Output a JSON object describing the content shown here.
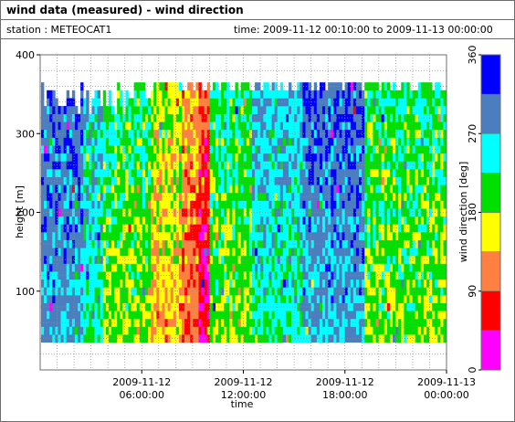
{
  "header": {
    "title": "wind data (measured) - wind direction",
    "station": "station : METEOCAT1",
    "time_range": "time: 2009-11-12 00:10:00 to 2009-11-13 00:00:00"
  },
  "chart_data": {
    "type": "heatmap",
    "title": "wind data (measured) - wind direction",
    "xlabel": "time",
    "ylabel": "height [m]",
    "x_ticks": [
      {
        "hour": 6,
        "line1": "2009-11-12",
        "line2": "06:00:00"
      },
      {
        "hour": 12,
        "line1": "2009-11-12",
        "line2": "12:00:00"
      },
      {
        "hour": 18,
        "line1": "2009-11-12",
        "line2": "18:00:00"
      },
      {
        "hour": 24,
        "line1": "2009-11-13",
        "line2": "00:00:00"
      }
    ],
    "xlim_hours": [
      0,
      24
    ],
    "y_ticks": [
      100,
      200,
      300,
      400
    ],
    "ylim": [
      0,
      400
    ],
    "data_height_range": [
      35,
      365
    ],
    "colorbar": {
      "label": "wind direction [deg]",
      "range": [
        0,
        360
      ],
      "ticks": [
        0,
        90,
        180,
        270,
        360
      ],
      "bins": [
        {
          "from": 0,
          "to": 45,
          "color": "#ff00ff"
        },
        {
          "from": 45,
          "to": 90,
          "color": "#ff0000"
        },
        {
          "from": 90,
          "to": 135,
          "color": "#ff8040"
        },
        {
          "from": 135,
          "to": 180,
          "color": "#ffff00"
        },
        {
          "from": 180,
          "to": 225,
          "color": "#00e000"
        },
        {
          "from": 225,
          "to": 270,
          "color": "#00ffff"
        },
        {
          "from": 270,
          "to": 315,
          "color": "#4a7ebf"
        },
        {
          "from": 315,
          "to": 360,
          "color": "#0000ff"
        }
      ]
    },
    "grid": true,
    "time_regimes": [
      {
        "from_hour": 0,
        "to_hour": 2.5,
        "direction_deg": 292
      },
      {
        "from_hour": 2.5,
        "to_hour": 3.6,
        "direction_deg": 248
      },
      {
        "from_hour": 3.6,
        "to_hour": 6.5,
        "direction_deg": 202
      },
      {
        "from_hour": 6.5,
        "to_hour": 8.3,
        "direction_deg": 158
      },
      {
        "from_hour": 8.3,
        "to_hour": 9.2,
        "direction_deg": 112
      },
      {
        "from_hour": 9.2,
        "to_hour": 9.9,
        "direction_deg": 68
      },
      {
        "from_hour": 9.9,
        "to_hour": 12.5,
        "direction_deg": 202
      },
      {
        "from_hour": 12.5,
        "to_hour": 15.5,
        "direction_deg": 248
      },
      {
        "from_hour": 15.5,
        "to_hour": 19,
        "direction_deg": 292
      },
      {
        "from_hour": 19,
        "to_hour": 24,
        "direction_deg": 202
      }
    ]
  }
}
